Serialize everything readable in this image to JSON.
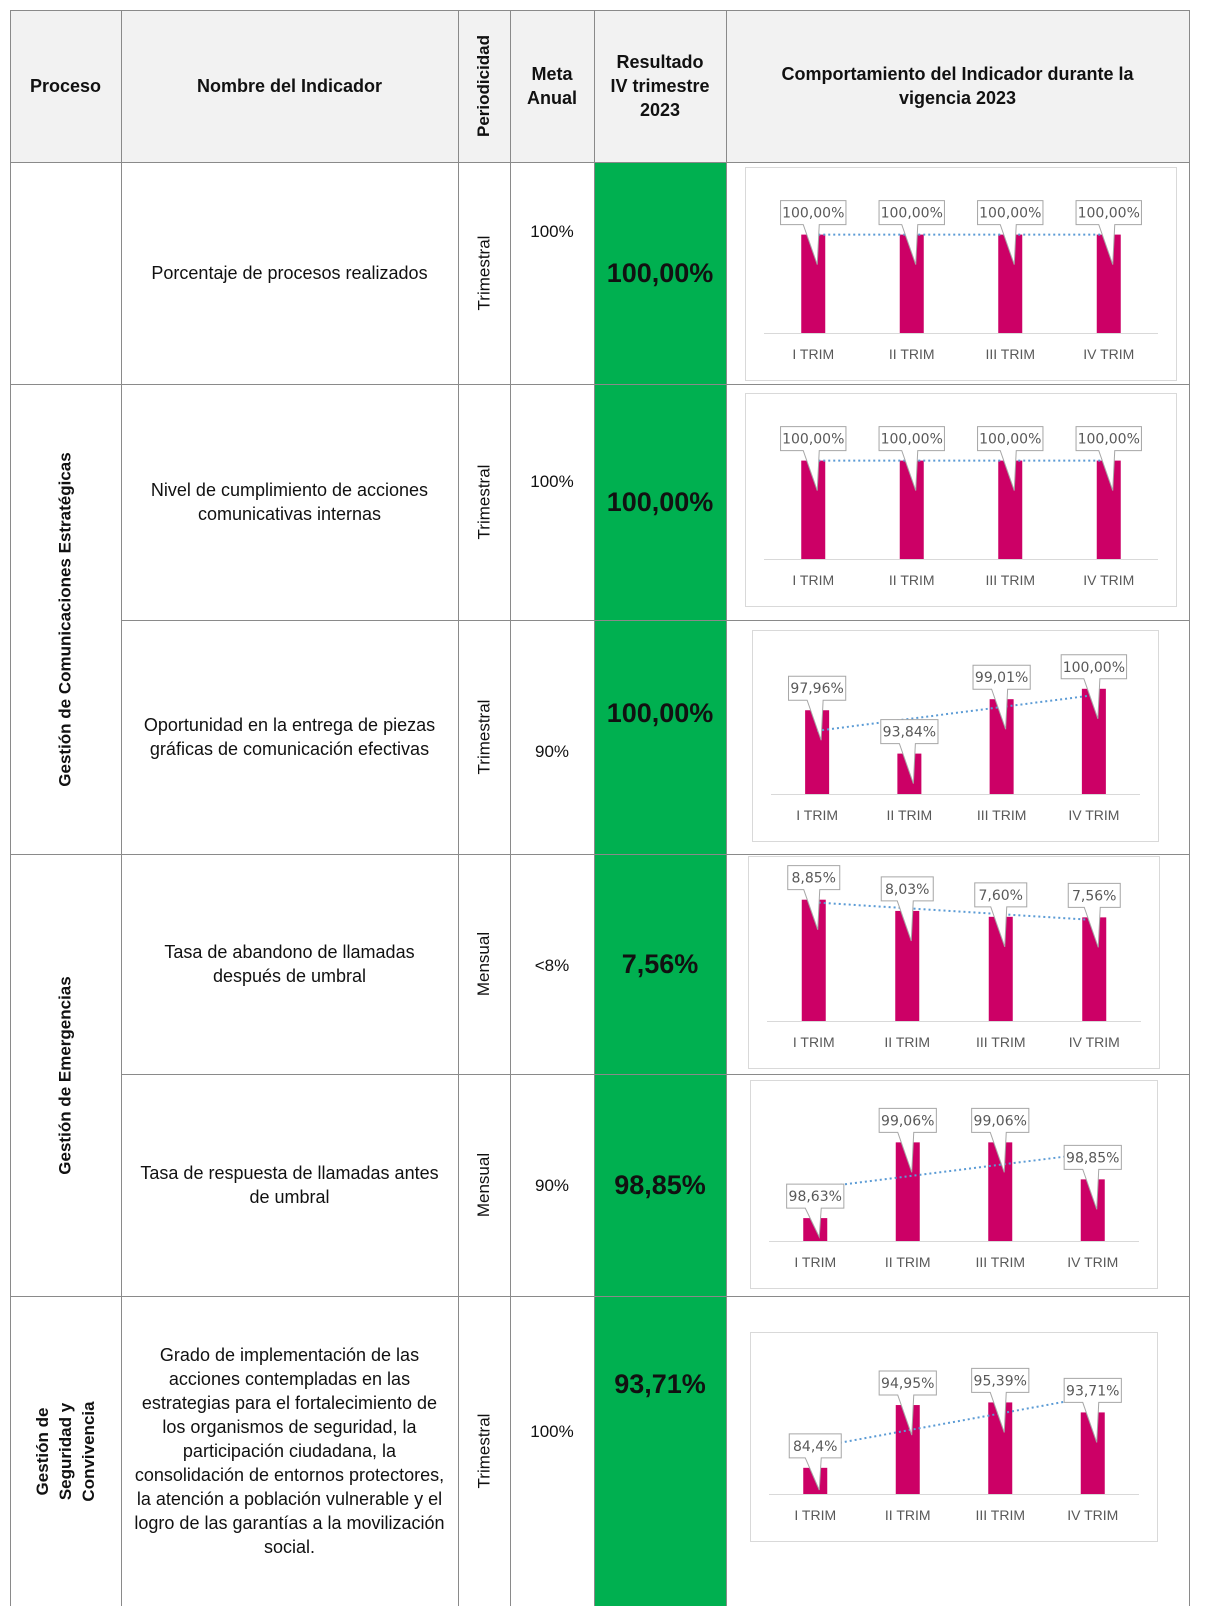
{
  "header": {
    "proceso": "Proceso",
    "nombre": "Nombre del Indicador",
    "periodicidad": "Periodicidad",
    "meta": "Meta Anual",
    "resultado": "Resultado IV trimestre 2023",
    "comportamiento": "Comportamiento del Indicador durante la vigencia 2023"
  },
  "processes": {
    "p2": "Gestión de Comunicaciones  Estratégicas",
    "p3": "Gestión de Emergencias",
    "p4": "Gestión de Seguridad y Convivencia"
  },
  "rows": [
    {
      "name": "Porcentaje de procesos realizados",
      "periodicity": "Trimestral",
      "meta": "100%",
      "result": "100,00%"
    },
    {
      "name": "Nivel de cumplimiento  de acciones comunicativas internas",
      "periodicity": "Trimestral",
      "meta": "100%",
      "result": "100,00%"
    },
    {
      "name": "Oportunidad en la entrega de piezas gráficas de comunicación efectivas",
      "periodicity": "Trimestral",
      "meta": "90%",
      "result": "100,00%"
    },
    {
      "name": "Tasa de abandono de llamadas después de umbral",
      "periodicity": "Mensual",
      "meta": "<8%",
      "result": "7,56%"
    },
    {
      "name": "Tasa de respuesta de llamadas antes de umbral",
      "periodicity": "Mensual",
      "meta": "90%",
      "result": "98,85%"
    },
    {
      "name": "Grado de implementación de las acciones contempladas en las estrategias para el fortalecimiento de los organismos de seguridad, la participación ciudadana, la consolidación de entornos protectores, la atención a población vulnerable y el logro de las garantías a la movilización social.",
      "periodicity": "Trimestral",
      "meta": "100%",
      "result": "93,71%"
    }
  ],
  "colors": {
    "bar": "#cc0066",
    "result_bg": "#00b050",
    "trendline": "#5b9bd5",
    "header_bg": "#f2f2f2"
  },
  "chart_data": [
    {
      "type": "bar",
      "categories": [
        "I TRIM",
        "II TRIM",
        "III TRIM",
        "IV TRIM"
      ],
      "values": [
        100,
        100,
        100,
        100
      ],
      "labels": [
        "100,00%",
        "100,00%",
        "100,00%",
        "100,00%"
      ],
      "ylim": [
        0,
        125
      ],
      "trendline": true
    },
    {
      "type": "bar",
      "categories": [
        "I TRIM",
        "II TRIM",
        "III TRIM",
        "IV TRIM"
      ],
      "values": [
        100,
        100,
        100,
        100
      ],
      "labels": [
        "100,00%",
        "100,00%",
        "100,00%",
        "100,00%"
      ],
      "ylim": [
        0,
        125
      ],
      "trendline": true
    },
    {
      "type": "bar",
      "categories": [
        "I TRIM",
        "II TRIM",
        "III TRIM",
        "IV TRIM"
      ],
      "values": [
        97.96,
        93.84,
        99.01,
        100.0
      ],
      "labels": [
        "97,96%",
        "93,84%",
        "99,01%",
        "100,00%"
      ],
      "ylim": [
        90,
        101.5
      ],
      "trendline": true
    },
    {
      "type": "bar",
      "categories": [
        "I TRIM",
        "II TRIM",
        "III TRIM",
        "IV TRIM"
      ],
      "values": [
        8.85,
        8.03,
        7.6,
        7.56
      ],
      "labels": [
        "8,85%",
        "8,03%",
        "7,60%",
        "7,56%"
      ],
      "ylim": [
        0,
        8.9
      ],
      "trendline": true
    },
    {
      "type": "bar",
      "categories": [
        "I TRIM",
        "II TRIM",
        "III TRIM",
        "IV TRIM"
      ],
      "values": [
        98.63,
        99.06,
        99.06,
        98.85
      ],
      "labels": [
        "98,63%",
        "99,06%",
        "99,06%",
        "98,85%"
      ],
      "ylim": [
        98.5,
        99.17
      ],
      "trendline": true
    },
    {
      "type": "bar",
      "categories": [
        "I TRIM",
        "II TRIM",
        "III TRIM",
        "IV TRIM"
      ],
      "values": [
        84.4,
        94.95,
        95.39,
        93.71
      ],
      "labels": [
        "84,4%",
        "94,95%",
        "95,39%",
        "93,71%"
      ],
      "ylim": [
        80,
        100
      ],
      "trendline": true
    }
  ]
}
